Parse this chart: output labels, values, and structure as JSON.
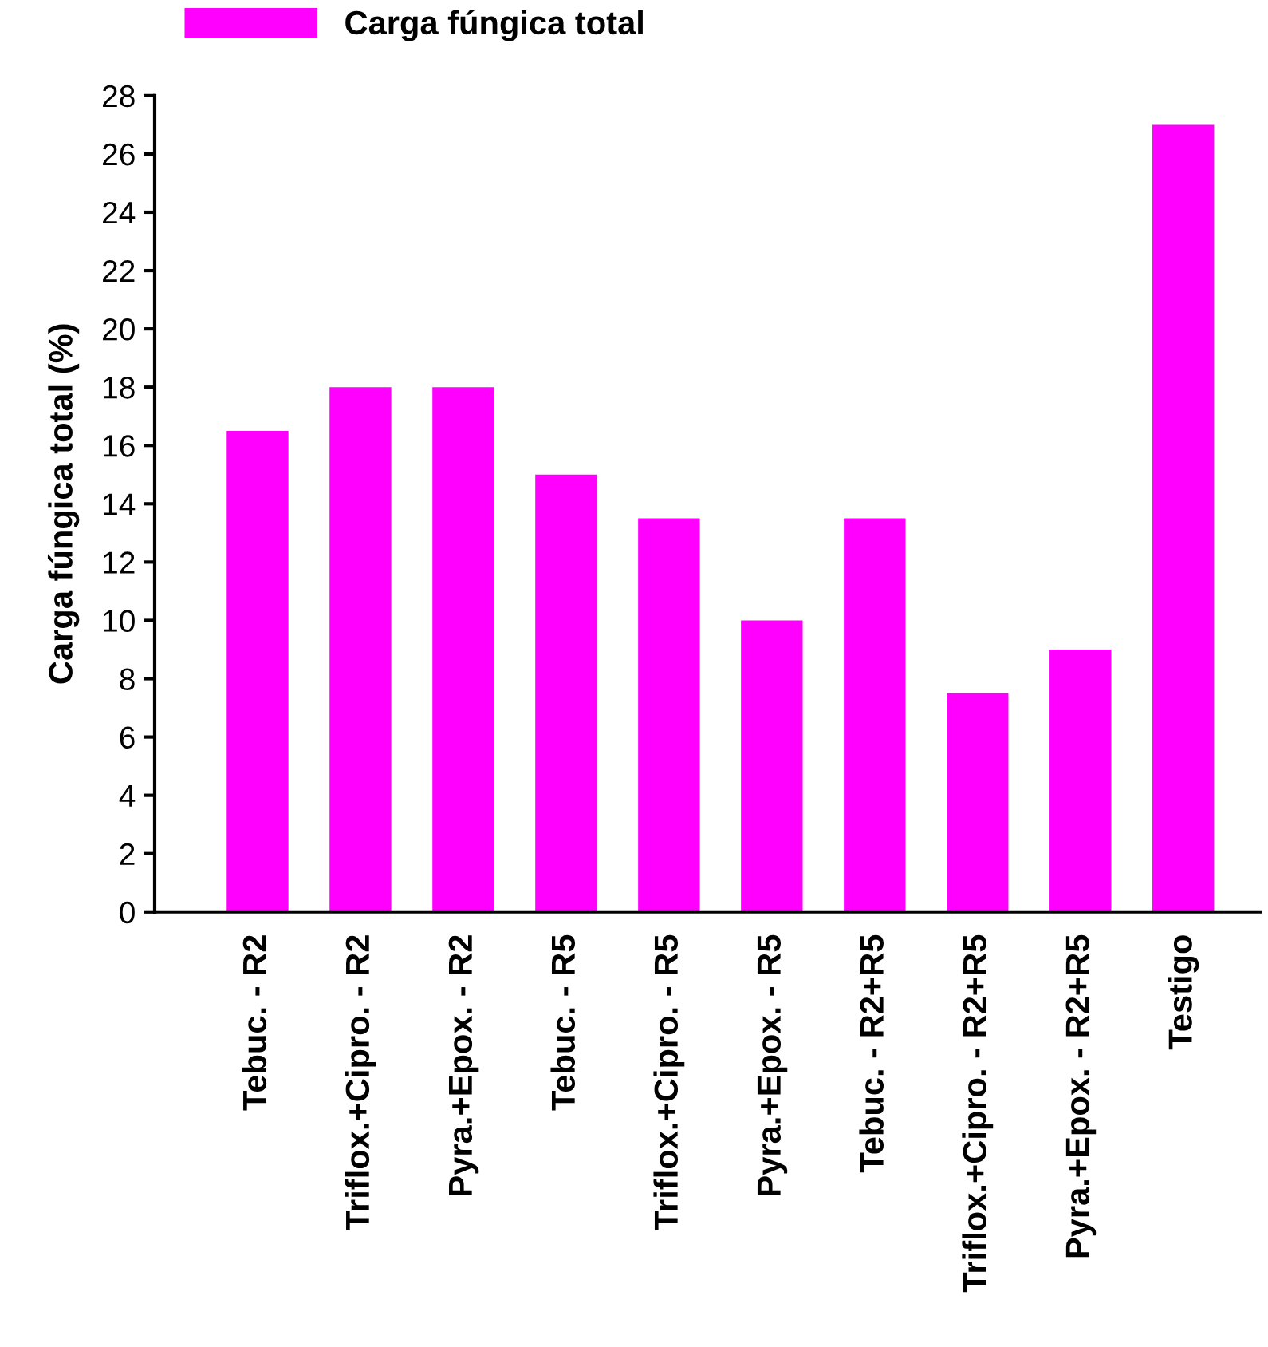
{
  "chart_data": {
    "type": "bar",
    "ylabel": "Carga fúngica total (%)",
    "categories": [
      "Tebuc. - R2",
      "Triflox.+Cipro. - R2",
      "Pyra.+Epox. - R2",
      "Tebuc. - R5",
      "Triflox.+Cipro. - R5",
      "Pyra.+Epox. - R5",
      "Tebuc. - R2+R5",
      "Triflox.+Cipro. - R2+R5",
      "Pyra.+Epox. - R2+R5",
      "Testigo"
    ],
    "series": [
      {
        "name": "Carga fúngica total",
        "color": "#ff00ff",
        "values": [
          16.5,
          18,
          18,
          15,
          13.5,
          10,
          13.5,
          7.5,
          9,
          27
        ]
      }
    ],
    "ylim": [
      0,
      28
    ],
    "yticks": [
      0,
      2,
      4,
      6,
      8,
      10,
      12,
      14,
      16,
      18,
      20,
      22,
      24,
      26,
      28
    ],
    "grid": false,
    "legend": "top left"
  }
}
